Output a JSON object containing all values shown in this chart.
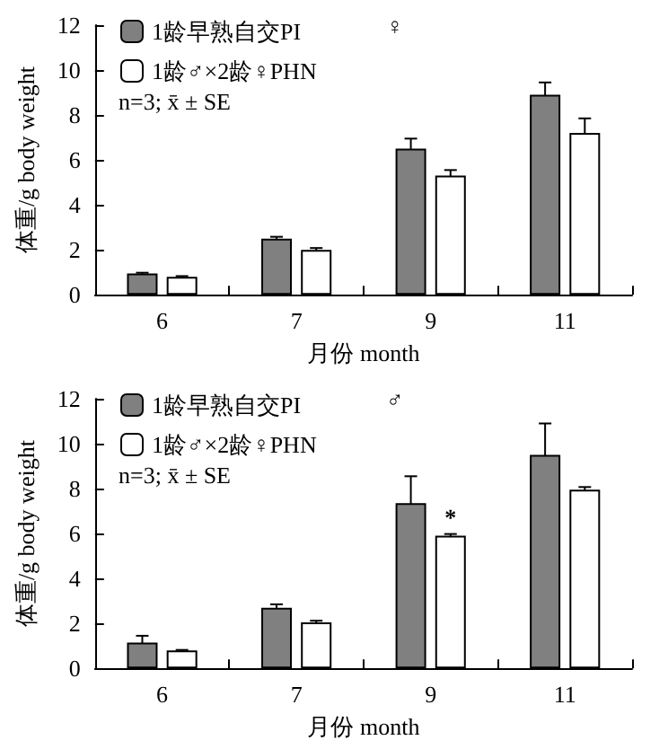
{
  "chart_data": [
    {
      "type": "bar",
      "categories": [
        "6",
        "7",
        "9",
        "11"
      ],
      "xlabel": "月份 month",
      "ylabel": "体重/g body weight",
      "ylim": [
        0,
        12
      ],
      "yticks": [
        0,
        2,
        4,
        6,
        8,
        10,
        12
      ],
      "legend": "top left",
      "grid": false,
      "series": [
        {
          "name": "1龄早熟自交PI",
          "color": "#808080",
          "values": [
            0.95,
            2.5,
            6.5,
            8.9
          ],
          "errors": [
            0.03,
            0.08,
            0.45,
            0.55
          ]
        },
        {
          "name": "1龄♂×2龄♀PHN",
          "color": "#ffffff",
          "values": [
            0.8,
            2.0,
            5.3,
            7.2
          ],
          "errors": [
            0.03,
            0.08,
            0.25,
            0.65
          ]
        }
      ],
      "annotations": [
        "♀",
        "n=3; x̄ ± SE"
      ]
    },
    {
      "type": "bar",
      "categories": [
        "6",
        "7",
        "9",
        "11"
      ],
      "xlabel": "月份 month",
      "ylabel": "体重/g body weight",
      "ylim": [
        0,
        12
      ],
      "yticks": [
        0,
        2,
        4,
        6,
        8,
        10,
        12
      ],
      "legend": "top left",
      "grid": false,
      "series": [
        {
          "name": "1龄早熟自交PI",
          "color": "#808080",
          "values": [
            1.15,
            2.7,
            7.35,
            9.5
          ],
          "errors": [
            0.3,
            0.15,
            1.2,
            1.4
          ]
        },
        {
          "name": "1龄♂×2龄♀PHN",
          "color": "#ffffff",
          "values": [
            0.8,
            2.05,
            5.9,
            7.95
          ],
          "errors": [
            0.02,
            0.07,
            0.08,
            0.12
          ]
        }
      ],
      "annotations": [
        "♂",
        "n=3; x̄ ± SE",
        {
          "text": "*",
          "x": "9",
          "y": 6.05
        }
      ]
    }
  ]
}
